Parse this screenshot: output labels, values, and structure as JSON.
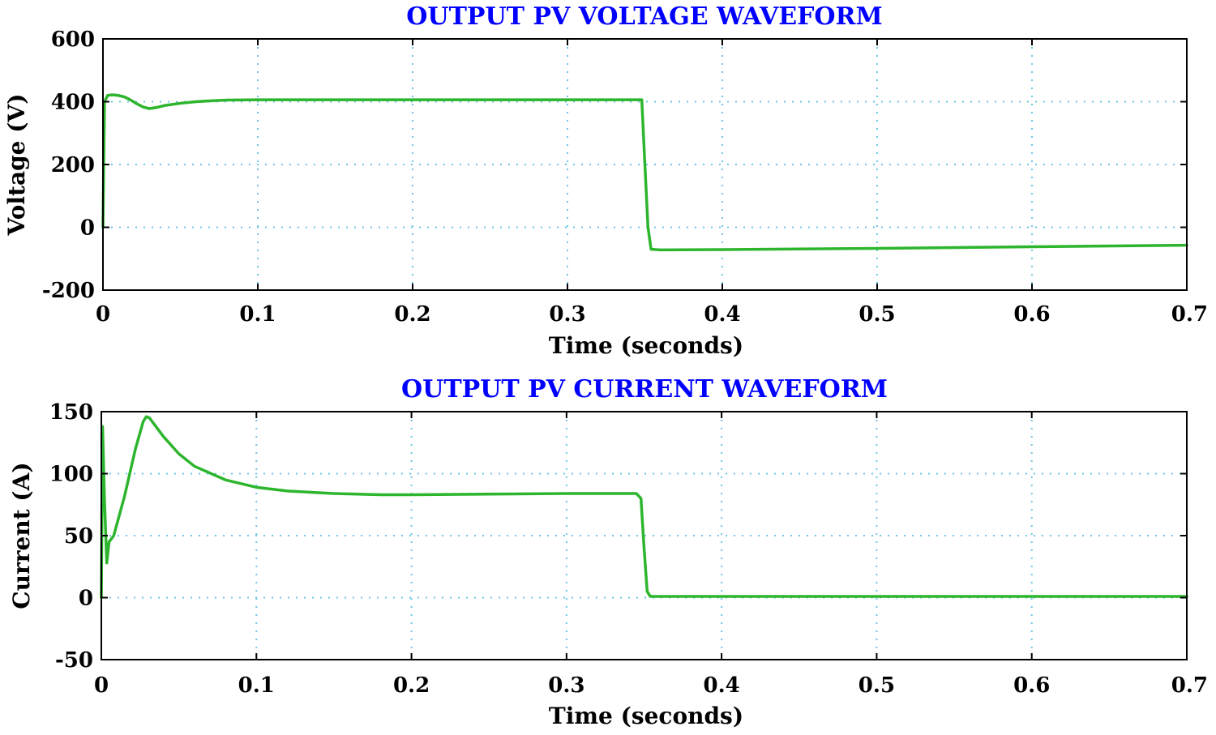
{
  "chart_data": [
    {
      "type": "line",
      "title": "OUTPUT PV VOLTAGE WAVEFORM",
      "xlabel": "Time (seconds)",
      "ylabel": "Voltage (V)",
      "xlim": [
        0,
        0.7
      ],
      "ylim": [
        -200,
        600
      ],
      "xticks": [
        0,
        0.1,
        0.2,
        0.3,
        0.4,
        0.5,
        0.6,
        0.7
      ],
      "xtick_labels": [
        "0",
        "0.1",
        "0.2",
        "0.3",
        "0.4",
        "0.5",
        "0.6",
        "0.7"
      ],
      "yticks": [
        -200,
        0,
        200,
        400,
        600
      ],
      "ytick_labels": [
        "-200",
        "0",
        "200",
        "400",
        "600"
      ],
      "grid": true,
      "line_color": "#2db52d",
      "series": [
        {
          "x": [
            0,
            0.001,
            0.003,
            0.006,
            0.01,
            0.014,
            0.018,
            0.022,
            0.026,
            0.03,
            0.035,
            0.04,
            0.05,
            0.06,
            0.07,
            0.08,
            0.1,
            0.15,
            0.2,
            0.25,
            0.3,
            0.345,
            0.348,
            0.35,
            0.352,
            0.354,
            0.36,
            0.4,
            0.5,
            0.6,
            0.7
          ],
          "y": [
            0,
            400,
            420,
            422,
            420,
            415,
            405,
            393,
            383,
            378,
            382,
            388,
            395,
            400,
            403,
            405,
            406,
            406,
            406,
            406,
            406,
            406,
            406,
            200,
            0,
            -70,
            -72,
            -71,
            -67,
            -62,
            -57
          ]
        }
      ]
    },
    {
      "type": "line",
      "title": "OUTPUT PV CURRENT WAVEFORM",
      "xlabel": "Time (seconds)",
      "ylabel": "Current (A)",
      "xlim": [
        0,
        0.7
      ],
      "ylim": [
        -50,
        150
      ],
      "xticks": [
        0,
        0.1,
        0.2,
        0.3,
        0.4,
        0.5,
        0.6,
        0.7
      ],
      "xtick_labels": [
        "0",
        "0.1",
        "0.2",
        "0.3",
        "0.4",
        "0.5",
        "0.6",
        "0.7"
      ],
      "yticks": [
        -50,
        0,
        50,
        100,
        150
      ],
      "ytick_labels": [
        "-50",
        "0",
        "50",
        "100",
        "150"
      ],
      "grid": true,
      "line_color": "#2db52d",
      "series": [
        {
          "x": [
            0,
            0.0008,
            0.002,
            0.0035,
            0.005,
            0.008,
            0.015,
            0.022,
            0.027,
            0.029,
            0.031,
            0.034,
            0.04,
            0.05,
            0.06,
            0.08,
            0.1,
            0.12,
            0.15,
            0.18,
            0.2,
            0.25,
            0.3,
            0.345,
            0.348,
            0.35,
            0.352,
            0.354,
            0.36,
            0.4,
            0.5,
            0.6,
            0.7
          ],
          "y": [
            0,
            138,
            80,
            28,
            45,
            50,
            82,
            120,
            142,
            146,
            145,
            140,
            130,
            116,
            106,
            95,
            89,
            86,
            84,
            83,
            83,
            83.5,
            84,
            84,
            80,
            40,
            5,
            1,
            1,
            1,
            1,
            1,
            1
          ]
        }
      ]
    }
  ]
}
